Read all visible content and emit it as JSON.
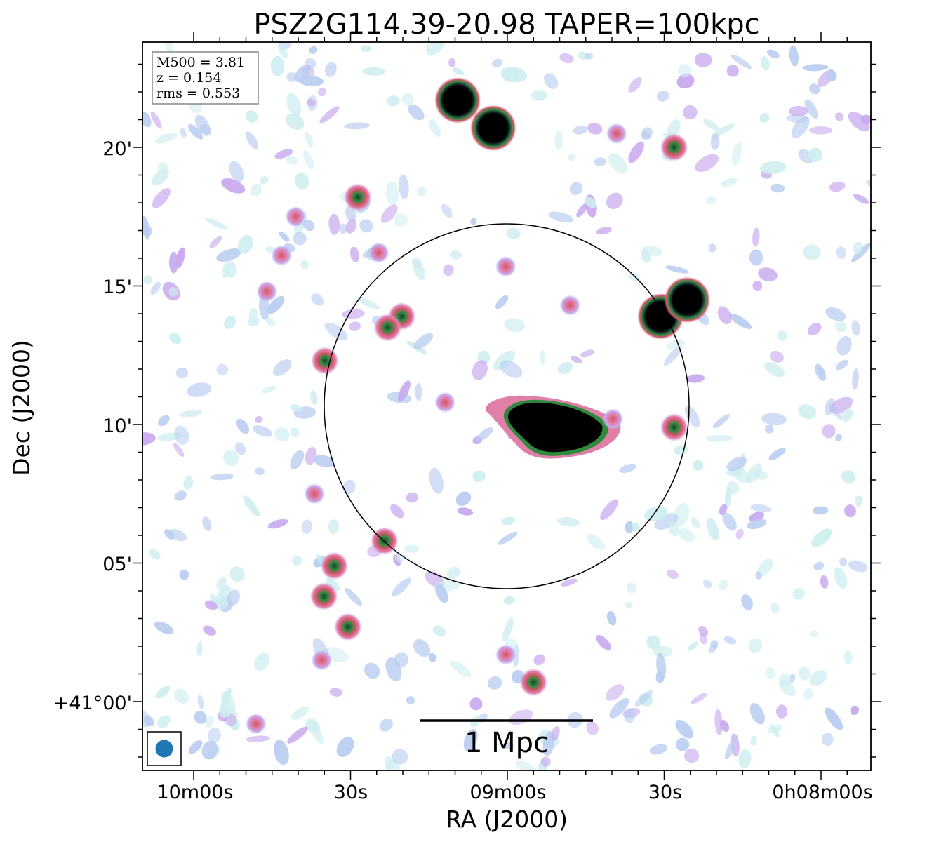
{
  "chart_data": {
    "type": "heatmap",
    "title": "PSZ2G114.39-20.98 TAPER=100kpc",
    "xlabel": "RA (J2000)",
    "ylabel": "Dec (J2000)",
    "x_ticks": [
      "10m00s",
      "30s",
      "09m00s",
      "30s",
      "0h08m00s"
    ],
    "y_ticks": [
      "+41°00'",
      "05'",
      "10'",
      "15'",
      "20'"
    ],
    "info": {
      "m500": "M500 = 3.81",
      "z": "z = 0.154",
      "rms": "rms = 0.553"
    },
    "scale_bar_label": "1 Mpc",
    "colormap": [
      "#ffffff",
      "#cfeef0",
      "#b9cdf0",
      "#c8a8ee",
      "#e07fa8",
      "#d2566a",
      "#2f8a3e",
      "#1c3d3a",
      "#000000"
    ],
    "beam_color": "#1f77b4",
    "sources": [
      {
        "ra_s": 9.5,
        "dec_m": 21.7,
        "strength": "bright"
      },
      {
        "ra_s": 2.7,
        "dec_m": 20.7,
        "strength": "bright"
      },
      {
        "ra_s": 28.6,
        "dec_m": 18.2,
        "strength": "medium"
      },
      {
        "ra_s": 40.5,
        "dec_m": 17.5,
        "strength": "faint"
      },
      {
        "ra_s": 43.2,
        "dec_m": 16.1,
        "strength": "faint"
      },
      {
        "ra_s": 46.0,
        "dec_m": 14.8,
        "strength": "faint"
      },
      {
        "ra_s": 24.6,
        "dec_m": 16.2,
        "strength": "faint"
      },
      {
        "ra_s": 20.2,
        "dec_m": 13.9,
        "strength": "medium"
      },
      {
        "ra_s": 22.9,
        "dec_m": 13.5,
        "strength": "medium"
      },
      {
        "ra_s": 34.9,
        "dec_m": 12.3,
        "strength": "medium"
      },
      {
        "ra_s": 0.3,
        "dec_m": 15.7,
        "strength": "faint"
      },
      {
        "ra_s": -12.0,
        "dec_m": 14.3,
        "strength": "faint"
      },
      {
        "ra_s": -4.9,
        "dec_m": 9.9,
        "strength": "core"
      },
      {
        "ra_s": -29.3,
        "dec_m": 13.9,
        "strength": "bright"
      },
      {
        "ra_s": -34.4,
        "dec_m": 14.5,
        "strength": "bright"
      },
      {
        "ra_s": -31.9,
        "dec_m": 20.0,
        "strength": "medium"
      },
      {
        "ra_s": -31.9,
        "dec_m": 9.9,
        "strength": "medium"
      },
      {
        "ra_s": -20.2,
        "dec_m": 10.2,
        "strength": "faint"
      },
      {
        "ra_s": 11.9,
        "dec_m": 10.8,
        "strength": "faint"
      },
      {
        "ra_s": 23.5,
        "dec_m": 5.8,
        "strength": "medium"
      },
      {
        "ra_s": 33.1,
        "dec_m": 4.9,
        "strength": "medium"
      },
      {
        "ra_s": 35.1,
        "dec_m": 3.8,
        "strength": "medium"
      },
      {
        "ra_s": 30.5,
        "dec_m": 2.7,
        "strength": "medium"
      },
      {
        "ra_s": 36.9,
        "dec_m": 7.5,
        "strength": "faint"
      },
      {
        "ra_s": -5.0,
        "dec_m": 0.7,
        "strength": "medium"
      },
      {
        "ra_s": 0.3,
        "dec_m": 1.7,
        "strength": "faint"
      },
      {
        "ra_s": 35.5,
        "dec_m": 1.5,
        "strength": "faint"
      },
      {
        "ra_s": 48.1,
        "dec_m": -0.8,
        "strength": "faint"
      },
      {
        "ra_s": -20.9,
        "dec_m": 20.5,
        "strength": "faint"
      }
    ]
  }
}
